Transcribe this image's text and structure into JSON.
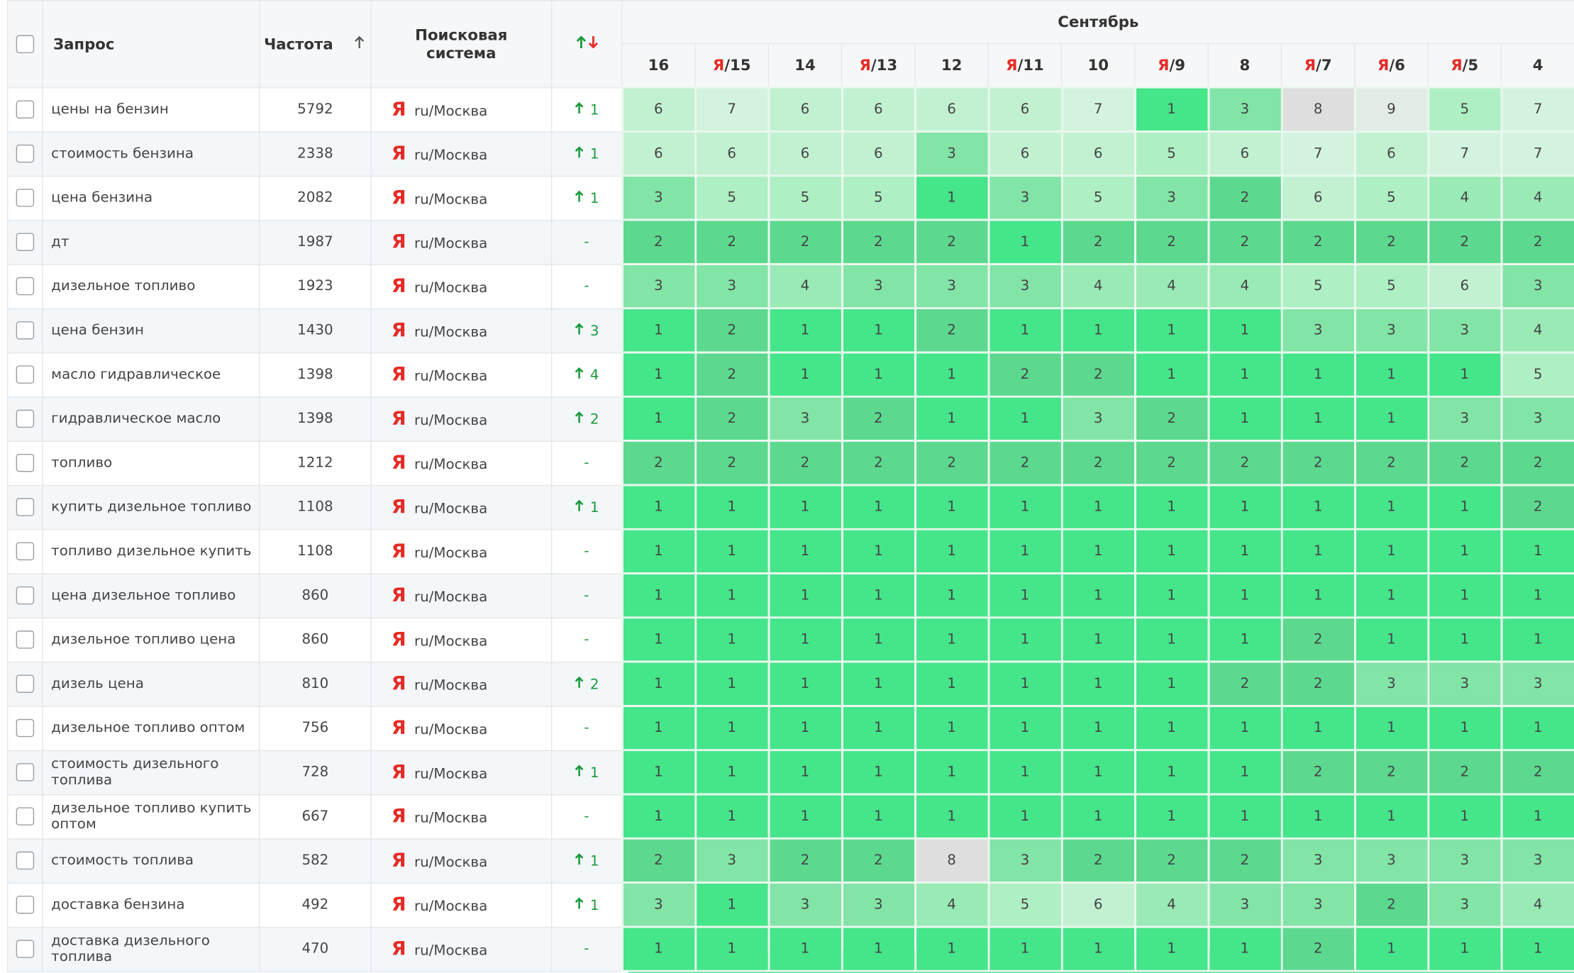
{
  "table": {
    "headers": {
      "query": "Запрос",
      "frequency": "Частота",
      "engine": [
        "Поисковая",
        "система"
      ],
      "month": "Сентябрь"
    },
    "dates": [
      {
        "day": "16"
      },
      {
        "engine": "Я",
        "day": "/15"
      },
      {
        "day": "14"
      },
      {
        "engine": "Я",
        "day": "/13"
      },
      {
        "day": "12"
      },
      {
        "engine": "Я",
        "day": "/11"
      },
      {
        "day": "10"
      },
      {
        "engine": "Я",
        "day": "/9"
      },
      {
        "day": "8"
      },
      {
        "engine": "Я",
        "day": "/7"
      },
      {
        "engine": "Я",
        "day": "/6"
      },
      {
        "engine": "Я",
        "day": "/5"
      },
      {
        "day": "4"
      }
    ],
    "rows": [
      {
        "query": "цены на бензин",
        "frequency": 5792,
        "engine": "Я",
        "region": "ru/Москва",
        "change": {
          "trend": "up",
          "value": 1
        },
        "positions": [
          6,
          7,
          6,
          6,
          6,
          6,
          7,
          1,
          3,
          8,
          9,
          5,
          7
        ]
      },
      {
        "query": "стоимость бензина",
        "frequency": 2338,
        "engine": "Я",
        "region": "ru/Москва",
        "change": {
          "trend": "up",
          "value": 1
        },
        "positions": [
          6,
          6,
          6,
          6,
          3,
          6,
          6,
          5,
          6,
          7,
          6,
          7,
          7
        ]
      },
      {
        "query": "цена бензина",
        "frequency": 2082,
        "engine": "Я",
        "region": "ru/Москва",
        "change": {
          "trend": "up",
          "value": 1
        },
        "positions": [
          3,
          5,
          5,
          5,
          1,
          3,
          5,
          3,
          2,
          6,
          5,
          4,
          4
        ]
      },
      {
        "query": "дт",
        "frequency": 1987,
        "engine": "Я",
        "region": "ru/Москва",
        "change": "-",
        "positions": [
          2,
          2,
          2,
          2,
          2,
          1,
          2,
          2,
          2,
          2,
          2,
          2,
          2
        ]
      },
      {
        "query": "дизельное топливо",
        "frequency": 1923,
        "engine": "Я",
        "region": "ru/Москва",
        "change": "-",
        "positions": [
          3,
          3,
          4,
          3,
          3,
          3,
          4,
          4,
          4,
          5,
          5,
          6,
          3
        ]
      },
      {
        "query": "цена бензин",
        "frequency": 1430,
        "engine": "Я",
        "region": "ru/Москва",
        "change": {
          "trend": "up",
          "value": 3
        },
        "positions": [
          1,
          2,
          1,
          1,
          2,
          1,
          1,
          1,
          1,
          3,
          3,
          3,
          4
        ]
      },
      {
        "query": "масло гидравлическое",
        "frequency": 1398,
        "engine": "Я",
        "region": "ru/Москва",
        "change": {
          "trend": "up",
          "value": 4
        },
        "positions": [
          1,
          2,
          1,
          1,
          1,
          2,
          2,
          1,
          1,
          1,
          1,
          1,
          5
        ]
      },
      {
        "query": "гидравлическое масло",
        "frequency": 1398,
        "engine": "Я",
        "region": "ru/Москва",
        "change": {
          "trend": "up",
          "value": 2
        },
        "positions": [
          1,
          2,
          3,
          2,
          1,
          1,
          3,
          2,
          1,
          1,
          1,
          3,
          3
        ]
      },
      {
        "query": "топливо",
        "frequency": 1212,
        "engine": "Я",
        "region": "ru/Москва",
        "change": "-",
        "positions": [
          2,
          2,
          2,
          2,
          2,
          2,
          2,
          2,
          2,
          2,
          2,
          2,
          2
        ]
      },
      {
        "query": "купить дизельное топливо",
        "frequency": 1108,
        "engine": "Я",
        "region": "ru/Москва",
        "change": {
          "trend": "up",
          "value": 1
        },
        "positions": [
          1,
          1,
          1,
          1,
          1,
          1,
          1,
          1,
          1,
          1,
          1,
          1,
          2
        ]
      },
      {
        "query": "топливо дизельное купить",
        "frequency": 1108,
        "engine": "Я",
        "region": "ru/Москва",
        "change": "-",
        "positions": [
          1,
          1,
          1,
          1,
          1,
          1,
          1,
          1,
          1,
          1,
          1,
          1,
          1
        ]
      },
      {
        "query": "цена дизельное топливо",
        "frequency": 860,
        "engine": "Я",
        "region": "ru/Москва",
        "change": "-",
        "positions": [
          1,
          1,
          1,
          1,
          1,
          1,
          1,
          1,
          1,
          1,
          1,
          1,
          1
        ]
      },
      {
        "query": "дизельное топливо цена",
        "frequency": 860,
        "engine": "Я",
        "region": "ru/Москва",
        "change": "-",
        "positions": [
          1,
          1,
          1,
          1,
          1,
          1,
          1,
          1,
          1,
          2,
          1,
          1,
          1
        ]
      },
      {
        "query": "дизель цена",
        "frequency": 810,
        "engine": "Я",
        "region": "ru/Москва",
        "change": {
          "trend": "up",
          "value": 2
        },
        "positions": [
          1,
          1,
          1,
          1,
          1,
          1,
          1,
          1,
          2,
          2,
          3,
          3,
          3
        ]
      },
      {
        "query": "дизельное топливо оптом",
        "frequency": 756,
        "engine": "Я",
        "region": "ru/Москва",
        "change": "-",
        "positions": [
          1,
          1,
          1,
          1,
          1,
          1,
          1,
          1,
          1,
          1,
          1,
          1,
          1
        ]
      },
      {
        "query": "стоимость дизельного топлива",
        "frequency": 728,
        "engine": "Я",
        "region": "ru/Москва",
        "change": {
          "trend": "up",
          "value": 1
        },
        "positions": [
          1,
          1,
          1,
          1,
          1,
          1,
          1,
          1,
          1,
          2,
          2,
          2,
          2
        ]
      },
      {
        "query": "дизельное топливо купить оптом",
        "frequency": 667,
        "engine": "Я",
        "region": "ru/Москва",
        "change": "-",
        "positions": [
          1,
          1,
          1,
          1,
          1,
          1,
          1,
          1,
          1,
          1,
          1,
          1,
          1
        ]
      },
      {
        "query": "стоимость топлива",
        "frequency": 582,
        "engine": "Я",
        "region": "ru/Москва",
        "change": {
          "trend": "up",
          "value": 1
        },
        "positions": [
          2,
          3,
          2,
          2,
          8,
          3,
          2,
          2,
          2,
          3,
          3,
          3,
          3
        ]
      },
      {
        "query": "доставка бензина",
        "frequency": 492,
        "engine": "Я",
        "region": "ru/Москва",
        "change": {
          "trend": "up",
          "value": 1
        },
        "positions": [
          3,
          1,
          3,
          3,
          4,
          5,
          6,
          4,
          3,
          3,
          2,
          3,
          4
        ]
      },
      {
        "query": "доставка дизельного топлива",
        "frequency": 470,
        "engine": "Я",
        "region": "ru/Москва",
        "change": "-",
        "positions": [
          1,
          1,
          1,
          1,
          1,
          1,
          1,
          1,
          1,
          2,
          1,
          1,
          1
        ]
      }
    ]
  }
}
